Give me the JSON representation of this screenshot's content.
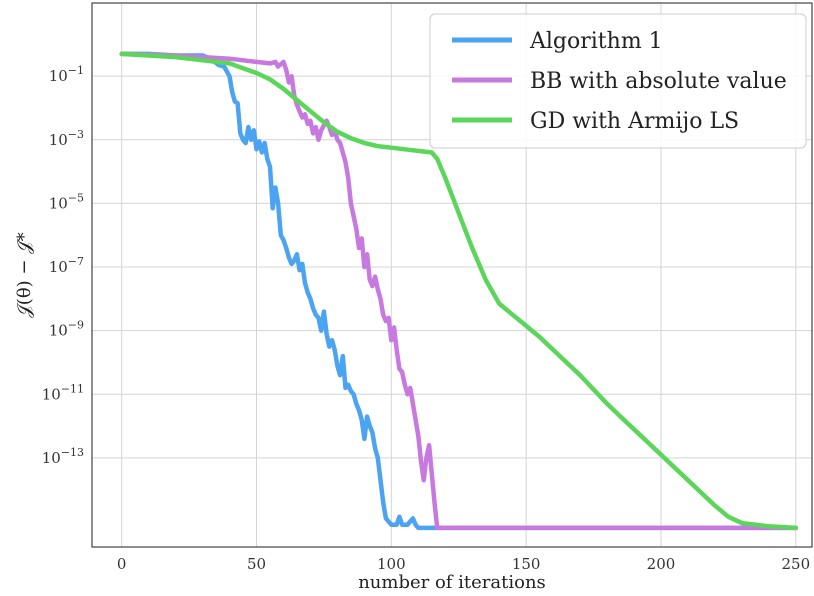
{
  "chart_data": {
    "type": "line",
    "title": "",
    "xlabel": "number of iterations",
    "ylabel": "𝒥(θ) − 𝒥*",
    "xlim": [
      -11,
      256
    ],
    "ylog": true,
    "ylim_exp": [
      -15.8,
      1.3
    ],
    "xticks": [
      0,
      50,
      100,
      150,
      200,
      250
    ],
    "xtick_labels": [
      "0",
      "50",
      "100",
      "150",
      "200",
      "250"
    ],
    "yticks_exp": [
      -1,
      -3,
      -5,
      -7,
      -9,
      -11,
      -13
    ],
    "grid": true,
    "legend_position": "top-right",
    "series": [
      {
        "name": "Algorithm 1",
        "color": "#4ba3f2",
        "points": [
          [
            0,
            -0.3
          ],
          [
            10,
            -0.3
          ],
          [
            20,
            -0.35
          ],
          [
            30,
            -0.35
          ],
          [
            33,
            -0.45
          ],
          [
            36,
            -0.65
          ],
          [
            38,
            -0.7
          ],
          [
            40,
            -1.0
          ],
          [
            41,
            -1.5
          ],
          [
            42,
            -1.8
          ],
          [
            43,
            -1.85
          ],
          [
            44,
            -2.8
          ],
          [
            45,
            -3.0
          ],
          [
            46,
            -3.1
          ],
          [
            47,
            -2.6
          ],
          [
            48,
            -3.0
          ],
          [
            49,
            -2.7
          ],
          [
            50,
            -3.3
          ],
          [
            51,
            -3.05
          ],
          [
            52,
            -3.4
          ],
          [
            53,
            -3.1
          ],
          [
            54,
            -3.6
          ],
          [
            55,
            -3.85
          ],
          [
            56,
            -5.15
          ],
          [
            57,
            -4.5
          ],
          [
            58,
            -5.0
          ],
          [
            59,
            -6.0
          ],
          [
            60,
            -6.15
          ],
          [
            61,
            -6.4
          ],
          [
            62,
            -6.7
          ],
          [
            63,
            -6.9
          ],
          [
            64,
            -6.8
          ],
          [
            65,
            -6.6
          ],
          [
            66,
            -7.1
          ],
          [
            67,
            -6.9
          ],
          [
            68,
            -7.5
          ],
          [
            69,
            -7.8
          ],
          [
            70,
            -8.0
          ],
          [
            71,
            -8.3
          ],
          [
            72,
            -8.5
          ],
          [
            73,
            -8.6
          ],
          [
            74,
            -9.0
          ],
          [
            75,
            -8.4
          ],
          [
            76,
            -9.1
          ],
          [
            77,
            -9.5
          ],
          [
            78,
            -9.3
          ],
          [
            79,
            -9.6
          ],
          [
            80,
            -10.1
          ],
          [
            81,
            -10.4
          ],
          [
            82,
            -9.8
          ],
          [
            83,
            -10.8
          ],
          [
            84,
            -10.7
          ],
          [
            85,
            -10.9
          ],
          [
            86,
            -11.0
          ],
          [
            87,
            -11.3
          ],
          [
            88,
            -11.5
          ],
          [
            89,
            -11.8
          ],
          [
            90,
            -12.4
          ],
          [
            91,
            -11.7
          ],
          [
            92,
            -12.0
          ],
          [
            93,
            -12.2
          ],
          [
            94,
            -12.7
          ],
          [
            95,
            -13.0
          ],
          [
            96,
            -13.7
          ],
          [
            97,
            -14.4
          ],
          [
            98,
            -14.9
          ],
          [
            100,
            -15.1
          ],
          [
            102,
            -15.1
          ],
          [
            103,
            -14.85
          ],
          [
            104,
            -15.1
          ],
          [
            106,
            -15.1
          ],
          [
            108,
            -14.9
          ],
          [
            109,
            -15.1
          ],
          [
            110,
            -15.2
          ],
          [
            112,
            -15.2
          ],
          [
            250,
            -15.2
          ]
        ]
      },
      {
        "name": "BB with absolute value",
        "color": "#c879e0",
        "points": [
          [
            0,
            -0.3
          ],
          [
            10,
            -0.32
          ],
          [
            20,
            -0.35
          ],
          [
            30,
            -0.4
          ],
          [
            40,
            -0.45
          ],
          [
            50,
            -0.55
          ],
          [
            55,
            -0.6
          ],
          [
            57,
            -0.55
          ],
          [
            58,
            -0.7
          ],
          [
            60,
            -0.55
          ],
          [
            61,
            -0.8
          ],
          [
            62,
            -1.2
          ],
          [
            63,
            -1.0
          ],
          [
            64,
            -1.6
          ],
          [
            65,
            -1.9
          ],
          [
            66,
            -2.1
          ],
          [
            67,
            -2.3
          ],
          [
            68,
            -2.2
          ],
          [
            69,
            -2.5
          ],
          [
            70,
            -2.4
          ],
          [
            71,
            -2.8
          ],
          [
            72,
            -2.6
          ],
          [
            73,
            -3.0
          ],
          [
            74,
            -2.7
          ],
          [
            75,
            -2.55
          ],
          [
            76,
            -2.4
          ],
          [
            77,
            -2.6
          ],
          [
            78,
            -2.85
          ],
          [
            79,
            -2.7
          ],
          [
            80,
            -3.0
          ],
          [
            81,
            -3.1
          ],
          [
            82,
            -3.4
          ],
          [
            83,
            -3.7
          ],
          [
            84,
            -4.2
          ],
          [
            85,
            -5.0
          ],
          [
            86,
            -5.4
          ],
          [
            87,
            -5.8
          ],
          [
            88,
            -6.4
          ],
          [
            89,
            -6.1
          ],
          [
            90,
            -7.0
          ],
          [
            91,
            -6.6
          ],
          [
            92,
            -7.4
          ],
          [
            93,
            -7.6
          ],
          [
            94,
            -7.3
          ],
          [
            95,
            -7.7
          ],
          [
            96,
            -8.0
          ],
          [
            97,
            -8.5
          ],
          [
            98,
            -8.7
          ],
          [
            99,
            -8.6
          ],
          [
            100,
            -9.3
          ],
          [
            101,
            -8.9
          ],
          [
            102,
            -9.6
          ],
          [
            103,
            -10.2
          ],
          [
            104,
            -10.3
          ],
          [
            105,
            -10.7
          ],
          [
            106,
            -11.0
          ],
          [
            107,
            -10.8
          ],
          [
            108,
            -11.3
          ],
          [
            109,
            -11.8
          ],
          [
            110,
            -12.3
          ],
          [
            111,
            -13.1
          ],
          [
            112,
            -13.7
          ],
          [
            113,
            -13.0
          ],
          [
            114,
            -12.6
          ],
          [
            115,
            -13.5
          ],
          [
            116,
            -14.4
          ],
          [
            117,
            -15.2
          ],
          [
            250,
            -15.2
          ]
        ]
      },
      {
        "name": "GD with Armijo LS",
        "color": "#5bd65b",
        "points": [
          [
            0,
            -0.3
          ],
          [
            10,
            -0.35
          ],
          [
            20,
            -0.4
          ],
          [
            30,
            -0.5
          ],
          [
            40,
            -0.6
          ],
          [
            45,
            -0.75
          ],
          [
            50,
            -0.9
          ],
          [
            55,
            -1.1
          ],
          [
            60,
            -1.4
          ],
          [
            65,
            -1.75
          ],
          [
            70,
            -2.1
          ],
          [
            75,
            -2.45
          ],
          [
            80,
            -2.75
          ],
          [
            85,
            -2.95
          ],
          [
            90,
            -3.1
          ],
          [
            95,
            -3.2
          ],
          [
            100,
            -3.25
          ],
          [
            105,
            -3.3
          ],
          [
            110,
            -3.35
          ],
          [
            115,
            -3.4
          ],
          [
            117,
            -3.6
          ],
          [
            120,
            -4.2
          ],
          [
            125,
            -5.3
          ],
          [
            130,
            -6.4
          ],
          [
            135,
            -7.4
          ],
          [
            140,
            -8.15
          ],
          [
            145,
            -8.5
          ],
          [
            150,
            -8.85
          ],
          [
            155,
            -9.2
          ],
          [
            160,
            -9.6
          ],
          [
            165,
            -10.0
          ],
          [
            170,
            -10.4
          ],
          [
            175,
            -10.85
          ],
          [
            180,
            -11.3
          ],
          [
            185,
            -11.7
          ],
          [
            190,
            -12.1
          ],
          [
            195,
            -12.5
          ],
          [
            200,
            -12.9
          ],
          [
            205,
            -13.3
          ],
          [
            210,
            -13.7
          ],
          [
            215,
            -14.1
          ],
          [
            220,
            -14.5
          ],
          [
            225,
            -14.85
          ],
          [
            230,
            -15.05
          ],
          [
            240,
            -15.15
          ],
          [
            250,
            -15.2
          ]
        ]
      }
    ]
  }
}
